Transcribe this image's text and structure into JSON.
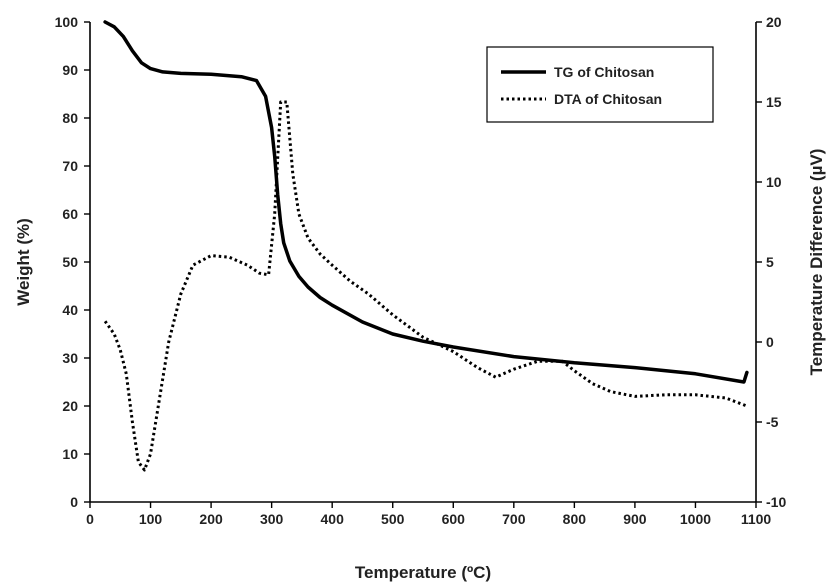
{
  "chart_data": {
    "type": "line",
    "title": "",
    "xlabel": "Temperature (ºC)",
    "ylabel": "Weight (%)",
    "y2label": "Temperature Difference (µV)",
    "xlim": [
      0,
      1100
    ],
    "ylim": [
      0,
      100
    ],
    "y2lim": [
      -10,
      20
    ],
    "x_ticks": [
      "0",
      "100",
      "200",
      "300",
      "400",
      "500",
      "600",
      "700",
      "800",
      "900",
      "1000",
      "1100"
    ],
    "y_ticks": [
      "0",
      "10",
      "20",
      "30",
      "40",
      "50",
      "60",
      "70",
      "80",
      "90",
      "100"
    ],
    "y2_ticks": [
      "-10",
      "-5",
      "0",
      "5",
      "10",
      "15",
      "20"
    ],
    "grid": false,
    "legend_position": "top-right",
    "series": [
      {
        "name": "TG of Chitosan",
        "axis": "left",
        "style": "solid",
        "color": "#000000",
        "x": [
          25,
          40,
          55,
          70,
          85,
          100,
          120,
          150,
          200,
          250,
          275,
          290,
          300,
          305,
          310,
          315,
          320,
          330,
          345,
          360,
          380,
          400,
          450,
          500,
          550,
          600,
          700,
          800,
          900,
          1000,
          1080,
          1085
        ],
        "y": [
          100,
          99,
          97,
          94,
          91.5,
          90.3,
          89.6,
          89.3,
          89.1,
          88.6,
          87.8,
          84.5,
          78,
          72,
          64,
          58,
          54,
          50.2,
          47,
          44.8,
          42.6,
          41,
          37.5,
          35,
          33.5,
          32.3,
          30.3,
          29,
          28,
          26.7,
          25,
          27
        ]
      },
      {
        "name": "DTA of Chitosan",
        "axis": "right",
        "style": "dotted",
        "color": "#000000",
        "x": [
          25,
          40,
          50,
          60,
          70,
          80,
          90,
          100,
          115,
          130,
          150,
          170,
          200,
          230,
          260,
          280,
          295,
          305,
          315,
          325,
          335,
          345,
          360,
          380,
          400,
          430,
          460,
          500,
          550,
          600,
          640,
          670,
          700,
          740,
          780,
          800,
          830,
          860,
          900,
          950,
          1000,
          1050,
          1085
        ],
        "y": [
          1.3,
          0.5,
          -0.5,
          -2,
          -5,
          -7.5,
          -8,
          -7,
          -3.5,
          0,
          3,
          4.8,
          5.4,
          5.3,
          4.8,
          4.3,
          4.2,
          8,
          15,
          15,
          10.5,
          8,
          6.5,
          5.5,
          4.8,
          3.8,
          3,
          1.7,
          0.3,
          -0.6,
          -1.6,
          -2.2,
          -1.7,
          -1.2,
          -1.2,
          -1.8,
          -2.6,
          -3.1,
          -3.4,
          -3.3,
          -3.3,
          -3.5,
          -4
        ]
      }
    ]
  }
}
